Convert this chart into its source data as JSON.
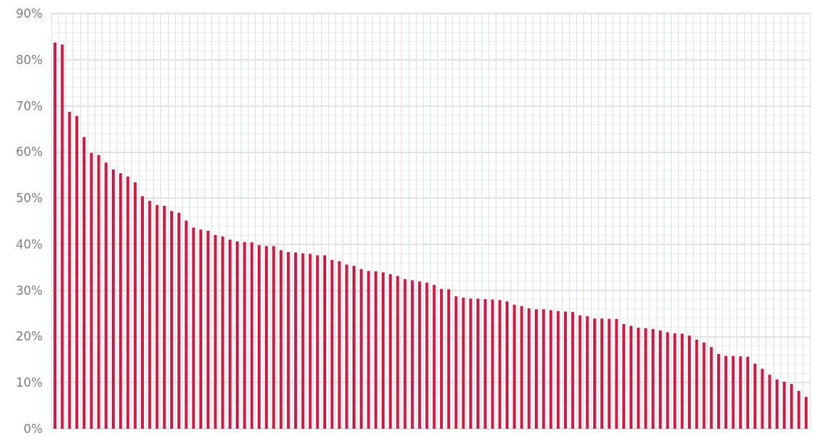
{
  "chart_data": {
    "type": "bar",
    "categories": [
      null,
      null,
      null,
      null,
      null,
      null,
      null,
      null,
      null,
      null,
      null,
      null,
      null,
      null,
      null,
      null,
      null,
      null,
      null,
      null,
      null,
      null,
      null,
      null,
      null,
      null,
      null,
      null,
      null,
      null,
      null,
      null,
      null,
      null,
      null,
      null,
      null,
      null,
      null,
      null,
      null,
      null,
      null,
      null,
      null,
      null,
      null,
      null,
      null,
      null,
      null,
      null,
      null,
      null,
      null,
      null,
      null,
      null,
      null,
      null,
      null,
      null,
      null,
      null,
      null,
      null,
      null,
      null,
      null,
      null,
      null,
      null,
      null,
      null,
      null,
      null,
      null,
      null,
      null,
      null,
      null,
      null,
      null,
      null,
      null,
      null,
      null,
      null,
      null,
      null,
      null,
      null,
      null,
      null,
      null,
      null,
      null,
      null,
      null,
      null,
      null,
      null,
      null,
      null
    ],
    "values": [
      83.7,
      83.3,
      68.7,
      67.8,
      63.2,
      59.8,
      59.3,
      57.7,
      56.2,
      55.4,
      54.7,
      53.4,
      50.4,
      49.4,
      48.5,
      48.3,
      47.2,
      46.8,
      45.1,
      43.6,
      43.2,
      42.9,
      42.0,
      41.7,
      41.0,
      40.6,
      40.5,
      40.4,
      39.8,
      39.6,
      39.6,
      38.7,
      38.3,
      38.2,
      38.0,
      37.9,
      37.6,
      37.6,
      36.6,
      36.3,
      35.6,
      35.3,
      34.6,
      34.2,
      34.1,
      33.9,
      33.5,
      33.1,
      32.4,
      32.2,
      31.9,
      31.7,
      31.2,
      30.3,
      30.2,
      28.7,
      28.4,
      28.2,
      28.2,
      28.1,
      28.0,
      27.9,
      27.6,
      26.9,
      26.6,
      26.1,
      25.9,
      25.9,
      25.7,
      25.5,
      25.4,
      25.3,
      24.6,
      24.4,
      23.9,
      23.9,
      23.8,
      23.8,
      22.7,
      22.3,
      21.9,
      21.8,
      21.6,
      21.3,
      20.9,
      20.7,
      20.6,
      20.2,
      19.3,
      18.7,
      17.7,
      16.2,
      15.8,
      15.8,
      15.7,
      15.6,
      14.1,
      13.0,
      11.7,
      10.7,
      10.2,
      9.7,
      8.2,
      6.9
    ],
    "color": "#d9153f",
    "ylim": [
      0,
      90
    ],
    "yticks": [
      {
        "value": 0,
        "label": "0%"
      },
      {
        "value": 10,
        "label": "10%"
      },
      {
        "value": 20,
        "label": "20%"
      },
      {
        "value": 30,
        "label": "30%"
      },
      {
        "value": 40,
        "label": "40%"
      },
      {
        "value": 50,
        "label": "50%"
      },
      {
        "value": 60,
        "label": "60%"
      },
      {
        "value": 70,
        "label": "70%"
      },
      {
        "value": 80,
        "label": "80%"
      },
      {
        "value": 90,
        "label": "90%"
      }
    ],
    "grid": true
  }
}
